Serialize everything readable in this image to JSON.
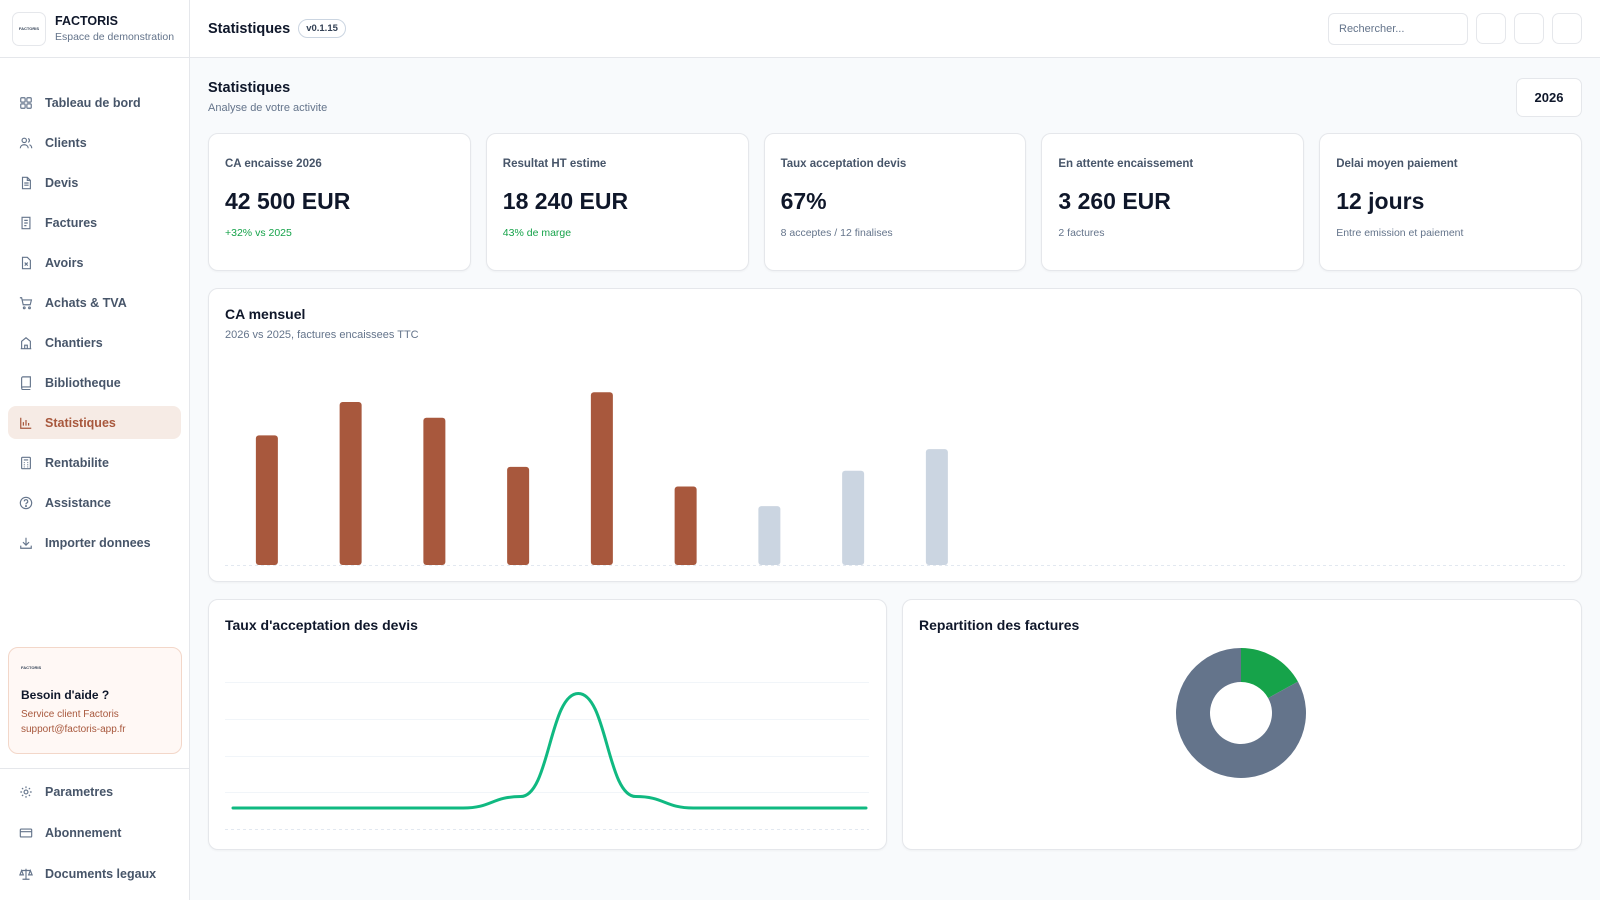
{
  "brand": {
    "name": "FACTORIS",
    "subtitle": "Espace de demonstration",
    "logo_text": "FACTORIS"
  },
  "sidebar": {
    "items": [
      {
        "label": "Tableau de bord",
        "icon": "grid-icon"
      },
      {
        "label": "Clients",
        "icon": "users-icon"
      },
      {
        "label": "Devis",
        "icon": "document-icon"
      },
      {
        "label": "Factures",
        "icon": "invoice-icon"
      },
      {
        "label": "Avoirs",
        "icon": "credit-note-icon"
      },
      {
        "label": "Achats & TVA",
        "icon": "cart-icon"
      },
      {
        "label": "Chantiers",
        "icon": "building-icon"
      },
      {
        "label": "Bibliotheque",
        "icon": "book-icon"
      },
      {
        "label": "Statistiques",
        "icon": "bar-chart-icon",
        "active": true
      },
      {
        "label": "Rentabilite",
        "icon": "calculator-icon"
      },
      {
        "label": "Assistance",
        "icon": "help-circle-icon"
      },
      {
        "label": "Importer donnees",
        "icon": "download-icon"
      }
    ],
    "help": {
      "logo_text": "FACTORIS",
      "title": "Besoin d'aide ?",
      "line1": "Service client Factoris",
      "line2": "support@factoris-app.fr"
    },
    "bottom_items": [
      {
        "label": "Parametres",
        "icon": "gear-icon"
      },
      {
        "label": "Abonnement",
        "icon": "credit-card-icon"
      },
      {
        "label": "Documents legaux",
        "icon": "scale-icon"
      }
    ]
  },
  "topbar": {
    "title": "Statistiques",
    "version": "v0.1.15",
    "search_placeholder": "Rechercher..."
  },
  "page": {
    "title": "Statistiques",
    "subtitle": "Analyse de votre activite",
    "year": "2026"
  },
  "kpis": [
    {
      "label": "CA encaisse 2026",
      "value": "42 500 EUR",
      "note": "+32% vs 2025",
      "positive": true
    },
    {
      "label": "Resultat HT estime",
      "value": "18 240 EUR",
      "note": "43% de marge",
      "positive": true
    },
    {
      "label": "Taux acceptation devis",
      "value": "67%",
      "note": "8 acceptes / 12 finalises",
      "positive": false
    },
    {
      "label": "En attente encaissement",
      "value": "3 260 EUR",
      "note": "2 factures",
      "positive": false
    },
    {
      "label": "Delai moyen paiement",
      "value": "12 jours",
      "note": "Entre emission et paiement",
      "positive": false
    }
  ],
  "chart_data": [
    {
      "type": "bar",
      "title": "CA mensuel",
      "subtitle": "2026 vs 2025, factures encaissees TTC",
      "slots": 16,
      "values": [
        6600,
        8300,
        7500,
        5000,
        8800,
        4000,
        3000,
        4800,
        5900
      ],
      "colors": [
        "#a8583d",
        "#a8583d",
        "#a8583d",
        "#a8583d",
        "#a8583d",
        "#a8583d",
        "#cbd5e1",
        "#cbd5e1",
        "#cbd5e1"
      ],
      "ylim": [
        0,
        11000
      ],
      "grid": false
    },
    {
      "type": "line",
      "title": "Taux d'acceptation des devis",
      "x": [
        1,
        2,
        3,
        4,
        5,
        6,
        7,
        8,
        9,
        10,
        11,
        12
      ],
      "values": [
        0,
        0,
        0,
        0,
        0,
        0.1,
        1,
        0.1,
        0,
        0,
        0,
        0
      ],
      "ylim": [
        0,
        1.1
      ],
      "color": "#10b981",
      "grid": true
    },
    {
      "type": "pie",
      "title": "Repartition des factures",
      "slices": [
        {
          "value": 17,
          "color": "#16a34a"
        },
        {
          "value": 83,
          "color": "#64748b"
        }
      ]
    }
  ]
}
